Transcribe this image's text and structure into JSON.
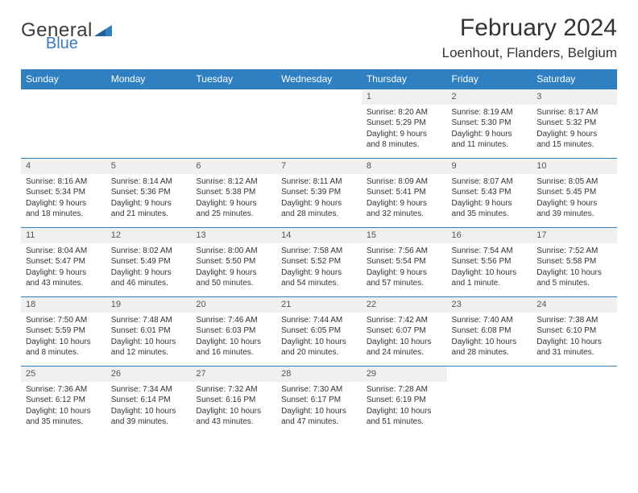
{
  "brand": {
    "word1": "General",
    "word2": "Blue",
    "text_color": "#3b3b3b",
    "accent_color": "#3a7cbf"
  },
  "title": "February 2024",
  "location": "Loenhout, Flanders, Belgium",
  "header_bg": "#2f7fc1",
  "header_fg": "#ffffff",
  "daynum_bg": "#f0f0f0",
  "border_color": "#2f7fc1",
  "day_headers": [
    "Sunday",
    "Monday",
    "Tuesday",
    "Wednesday",
    "Thursday",
    "Friday",
    "Saturday"
  ],
  "weeks": [
    [
      {
        "n": "",
        "lines": []
      },
      {
        "n": "",
        "lines": []
      },
      {
        "n": "",
        "lines": []
      },
      {
        "n": "",
        "lines": []
      },
      {
        "n": "1",
        "lines": [
          "Sunrise: 8:20 AM",
          "Sunset: 5:29 PM",
          "Daylight: 9 hours and 8 minutes."
        ]
      },
      {
        "n": "2",
        "lines": [
          "Sunrise: 8:19 AM",
          "Sunset: 5:30 PM",
          "Daylight: 9 hours and 11 minutes."
        ]
      },
      {
        "n": "3",
        "lines": [
          "Sunrise: 8:17 AM",
          "Sunset: 5:32 PM",
          "Daylight: 9 hours and 15 minutes."
        ]
      }
    ],
    [
      {
        "n": "4",
        "lines": [
          "Sunrise: 8:16 AM",
          "Sunset: 5:34 PM",
          "Daylight: 9 hours and 18 minutes."
        ]
      },
      {
        "n": "5",
        "lines": [
          "Sunrise: 8:14 AM",
          "Sunset: 5:36 PM",
          "Daylight: 9 hours and 21 minutes."
        ]
      },
      {
        "n": "6",
        "lines": [
          "Sunrise: 8:12 AM",
          "Sunset: 5:38 PM",
          "Daylight: 9 hours and 25 minutes."
        ]
      },
      {
        "n": "7",
        "lines": [
          "Sunrise: 8:11 AM",
          "Sunset: 5:39 PM",
          "Daylight: 9 hours and 28 minutes."
        ]
      },
      {
        "n": "8",
        "lines": [
          "Sunrise: 8:09 AM",
          "Sunset: 5:41 PM",
          "Daylight: 9 hours and 32 minutes."
        ]
      },
      {
        "n": "9",
        "lines": [
          "Sunrise: 8:07 AM",
          "Sunset: 5:43 PM",
          "Daylight: 9 hours and 35 minutes."
        ]
      },
      {
        "n": "10",
        "lines": [
          "Sunrise: 8:05 AM",
          "Sunset: 5:45 PM",
          "Daylight: 9 hours and 39 minutes."
        ]
      }
    ],
    [
      {
        "n": "11",
        "lines": [
          "Sunrise: 8:04 AM",
          "Sunset: 5:47 PM",
          "Daylight: 9 hours and 43 minutes."
        ]
      },
      {
        "n": "12",
        "lines": [
          "Sunrise: 8:02 AM",
          "Sunset: 5:49 PM",
          "Daylight: 9 hours and 46 minutes."
        ]
      },
      {
        "n": "13",
        "lines": [
          "Sunrise: 8:00 AM",
          "Sunset: 5:50 PM",
          "Daylight: 9 hours and 50 minutes."
        ]
      },
      {
        "n": "14",
        "lines": [
          "Sunrise: 7:58 AM",
          "Sunset: 5:52 PM",
          "Daylight: 9 hours and 54 minutes."
        ]
      },
      {
        "n": "15",
        "lines": [
          "Sunrise: 7:56 AM",
          "Sunset: 5:54 PM",
          "Daylight: 9 hours and 57 minutes."
        ]
      },
      {
        "n": "16",
        "lines": [
          "Sunrise: 7:54 AM",
          "Sunset: 5:56 PM",
          "Daylight: 10 hours and 1 minute."
        ]
      },
      {
        "n": "17",
        "lines": [
          "Sunrise: 7:52 AM",
          "Sunset: 5:58 PM",
          "Daylight: 10 hours and 5 minutes."
        ]
      }
    ],
    [
      {
        "n": "18",
        "lines": [
          "Sunrise: 7:50 AM",
          "Sunset: 5:59 PM",
          "Daylight: 10 hours and 8 minutes."
        ]
      },
      {
        "n": "19",
        "lines": [
          "Sunrise: 7:48 AM",
          "Sunset: 6:01 PM",
          "Daylight: 10 hours and 12 minutes."
        ]
      },
      {
        "n": "20",
        "lines": [
          "Sunrise: 7:46 AM",
          "Sunset: 6:03 PM",
          "Daylight: 10 hours and 16 minutes."
        ]
      },
      {
        "n": "21",
        "lines": [
          "Sunrise: 7:44 AM",
          "Sunset: 6:05 PM",
          "Daylight: 10 hours and 20 minutes."
        ]
      },
      {
        "n": "22",
        "lines": [
          "Sunrise: 7:42 AM",
          "Sunset: 6:07 PM",
          "Daylight: 10 hours and 24 minutes."
        ]
      },
      {
        "n": "23",
        "lines": [
          "Sunrise: 7:40 AM",
          "Sunset: 6:08 PM",
          "Daylight: 10 hours and 28 minutes."
        ]
      },
      {
        "n": "24",
        "lines": [
          "Sunrise: 7:38 AM",
          "Sunset: 6:10 PM",
          "Daylight: 10 hours and 31 minutes."
        ]
      }
    ],
    [
      {
        "n": "25",
        "lines": [
          "Sunrise: 7:36 AM",
          "Sunset: 6:12 PM",
          "Daylight: 10 hours and 35 minutes."
        ]
      },
      {
        "n": "26",
        "lines": [
          "Sunrise: 7:34 AM",
          "Sunset: 6:14 PM",
          "Daylight: 10 hours and 39 minutes."
        ]
      },
      {
        "n": "27",
        "lines": [
          "Sunrise: 7:32 AM",
          "Sunset: 6:16 PM",
          "Daylight: 10 hours and 43 minutes."
        ]
      },
      {
        "n": "28",
        "lines": [
          "Sunrise: 7:30 AM",
          "Sunset: 6:17 PM",
          "Daylight: 10 hours and 47 minutes."
        ]
      },
      {
        "n": "29",
        "lines": [
          "Sunrise: 7:28 AM",
          "Sunset: 6:19 PM",
          "Daylight: 10 hours and 51 minutes."
        ]
      },
      {
        "n": "",
        "lines": []
      },
      {
        "n": "",
        "lines": []
      }
    ]
  ]
}
